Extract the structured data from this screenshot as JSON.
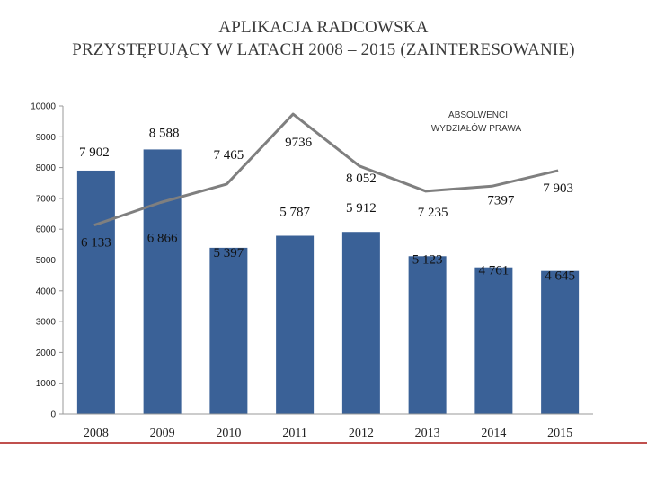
{
  "title_line1": "APLIKACJA RADCOWSKA",
  "title_line2": "PRZYSTĘPUJĄCY W LATACH 2008 – 2015 (ZAINTERESOWANIE)",
  "colors": {
    "bar": "#3a6197",
    "line": "#7f7f7f",
    "accent_rule": "#c0504d"
  },
  "chart_data": {
    "type": "bar",
    "title": "APLIKACJA RADCOWSKA PRZYSTĘPUJĄCY W LATACH 2008 – 2015 (ZAINTERESOWANIE)",
    "categories": [
      "2008",
      "2009",
      "2010",
      "2011",
      "2012",
      "2013",
      "2014",
      "2015"
    ],
    "ylim": [
      0,
      10000
    ],
    "yticks": [
      "0",
      "1000",
      "2000",
      "3000",
      "4000",
      "5000",
      "6000",
      "7000",
      "8000",
      "9000",
      "10000"
    ],
    "grid": false,
    "series": [
      {
        "type": "bar",
        "values": [
          7902,
          8588,
          5397,
          5787,
          5912,
          5123,
          4761,
          4645
        ],
        "labels": [
          "7 902",
          "8 588",
          "5 397",
          "5 787",
          "5 912",
          "5 123",
          "4 761",
          "4 645"
        ]
      },
      {
        "type": "line",
        "name": "ABSOLWENCI WYDZIAŁÓW PRAWA",
        "values": [
          6133,
          6866,
          7465,
          9736,
          8052,
          7235,
          7397,
          7903
        ],
        "labels": [
          "6 133",
          "6 866",
          "7 465",
          "9736",
          "8 052",
          "7 235",
          "7397",
          "7 903"
        ]
      }
    ],
    "annotation_line1": "ABSOLWENCI",
    "annotation_line2": "WYDZIAŁÓW PRAWA"
  }
}
